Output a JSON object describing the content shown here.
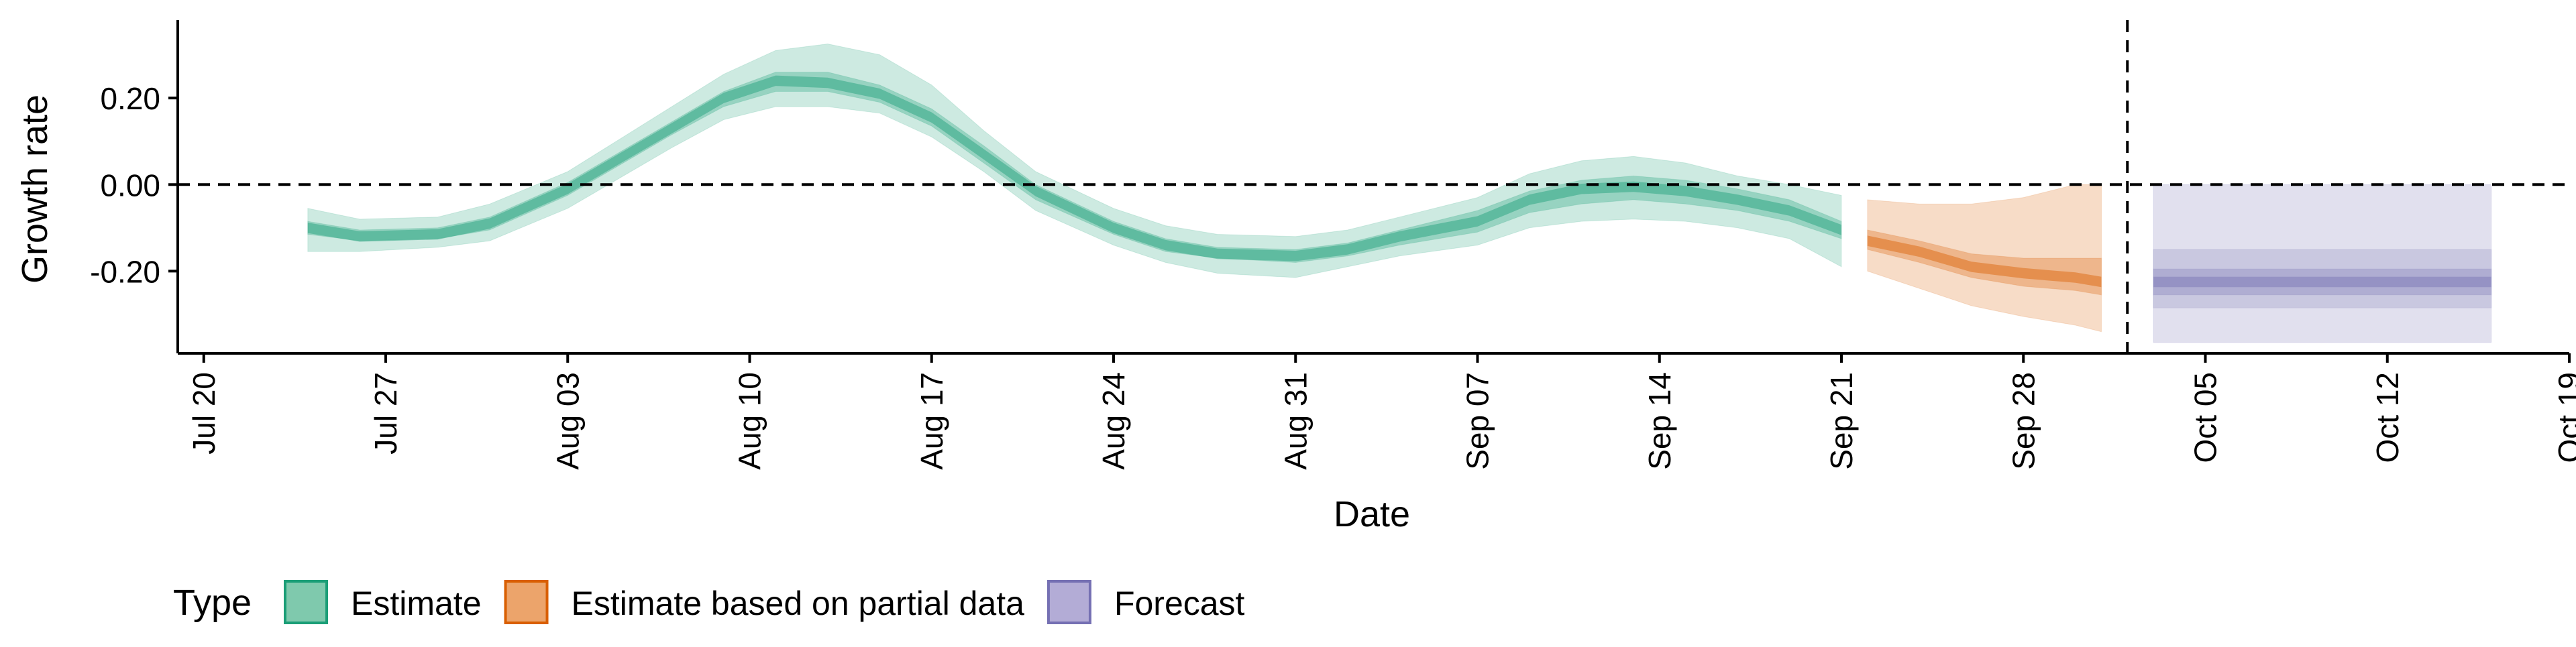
{
  "chart_data": {
    "type": "area",
    "title": "",
    "xlabel": "Date",
    "ylabel": "Growth rate",
    "x_type": "date",
    "xlim": [
      "2020-07-19",
      "2020-10-19"
    ],
    "ylim": [
      -0.39,
      0.38
    ],
    "x_ticks": [
      {
        "date": "2020-07-20",
        "label": "Jul 20"
      },
      {
        "date": "2020-07-27",
        "label": "Jul 27"
      },
      {
        "date": "2020-08-03",
        "label": "Aug 03"
      },
      {
        "date": "2020-08-10",
        "label": "Aug 10"
      },
      {
        "date": "2020-08-17",
        "label": "Aug 17"
      },
      {
        "date": "2020-08-24",
        "label": "Aug 24"
      },
      {
        "date": "2020-08-31",
        "label": "Aug 31"
      },
      {
        "date": "2020-09-07",
        "label": "Sep 07"
      },
      {
        "date": "2020-09-14",
        "label": "Sep 14"
      },
      {
        "date": "2020-09-21",
        "label": "Sep 21"
      },
      {
        "date": "2020-09-28",
        "label": "Sep 28"
      },
      {
        "date": "2020-10-05",
        "label": "Oct 05"
      },
      {
        "date": "2020-10-12",
        "label": "Oct 12"
      },
      {
        "date": "2020-10-19",
        "label": "Oct 19"
      }
    ],
    "y_ticks": [
      {
        "value": 0.2,
        "label": "0.20"
      },
      {
        "value": 0.0,
        "label": "0.00"
      },
      {
        "value": -0.2,
        "label": "-0.20"
      }
    ],
    "hline": 0.0,
    "vline": "2020-10-02",
    "legend": {
      "title": "Type",
      "position": "bottom",
      "entries": [
        {
          "label": "Estimate",
          "fill": "#7fc9ad",
          "stroke": "#1b9e77"
        },
        {
          "label": "Estimate based on partial data",
          "fill": "#eca46b",
          "stroke": "#d95f02"
        },
        {
          "label": "Forecast",
          "fill": "#b3acd6",
          "stroke": "#7570b3"
        }
      ]
    },
    "series": [
      {
        "name": "Estimate",
        "color": "#1b9e77",
        "x": [
          "2020-07-24",
          "2020-07-26",
          "2020-07-29",
          "2020-07-31",
          "2020-08-03",
          "2020-08-05",
          "2020-08-07",
          "2020-08-09",
          "2020-08-11",
          "2020-08-13",
          "2020-08-15",
          "2020-08-17",
          "2020-08-19",
          "2020-08-21",
          "2020-08-24",
          "2020-08-26",
          "2020-08-28",
          "2020-08-31",
          "2020-09-02",
          "2020-09-04",
          "2020-09-07",
          "2020-09-09",
          "2020-09-11",
          "2020-09-13",
          "2020-09-15",
          "2020-09-17",
          "2020-09-19",
          "2020-09-21"
        ],
        "median": [
          -0.1,
          -0.12,
          -0.115,
          -0.09,
          -0.01,
          0.06,
          0.13,
          0.2,
          0.24,
          0.235,
          0.21,
          0.155,
          0.07,
          -0.015,
          -0.1,
          -0.14,
          -0.16,
          -0.165,
          -0.15,
          -0.12,
          -0.085,
          -0.035,
          -0.01,
          -0.005,
          -0.015,
          -0.035,
          -0.06,
          -0.105
        ],
        "lower_50": [
          -0.115,
          -0.13,
          -0.125,
          -0.105,
          -0.025,
          0.045,
          0.115,
          0.18,
          0.215,
          0.215,
          0.19,
          0.135,
          0.05,
          -0.035,
          -0.115,
          -0.155,
          -0.17,
          -0.18,
          -0.165,
          -0.14,
          -0.11,
          -0.065,
          -0.045,
          -0.035,
          -0.045,
          -0.06,
          -0.085,
          -0.125
        ],
        "upper_50": [
          -0.085,
          -0.105,
          -0.1,
          -0.075,
          0.005,
          0.075,
          0.145,
          0.215,
          0.26,
          0.26,
          0.23,
          0.175,
          0.09,
          0.0,
          -0.085,
          -0.125,
          -0.145,
          -0.15,
          -0.135,
          -0.105,
          -0.06,
          -0.015,
          0.01,
          0.02,
          0.01,
          -0.01,
          -0.035,
          -0.085
        ],
        "lower_90": [
          -0.155,
          -0.155,
          -0.145,
          -0.13,
          -0.055,
          0.015,
          0.085,
          0.15,
          0.18,
          0.18,
          0.165,
          0.11,
          0.03,
          -0.06,
          -0.14,
          -0.18,
          -0.205,
          -0.215,
          -0.19,
          -0.165,
          -0.14,
          -0.1,
          -0.085,
          -0.08,
          -0.085,
          -0.1,
          -0.125,
          -0.19
        ],
        "upper_90": [
          -0.055,
          -0.08,
          -0.075,
          -0.045,
          0.03,
          0.105,
          0.18,
          0.255,
          0.31,
          0.325,
          0.3,
          0.23,
          0.125,
          0.03,
          -0.055,
          -0.095,
          -0.115,
          -0.12,
          -0.105,
          -0.075,
          -0.03,
          0.025,
          0.055,
          0.065,
          0.05,
          0.02,
          0.0,
          -0.025
        ]
      },
      {
        "name": "Estimate based on partial data",
        "color": "#d95f02",
        "x": [
          "2020-09-22",
          "2020-09-24",
          "2020-09-26",
          "2020-09-28",
          "2020-09-30",
          "2020-10-01"
        ],
        "median": [
          -0.13,
          -0.155,
          -0.19,
          -0.205,
          -0.215,
          -0.225
        ],
        "lower_50": [
          -0.15,
          -0.18,
          -0.215,
          -0.235,
          -0.245,
          -0.255
        ],
        "upper_50": [
          -0.105,
          -0.13,
          -0.16,
          -0.17,
          -0.17,
          -0.17
        ],
        "lower_90": [
          -0.2,
          -0.24,
          -0.28,
          -0.305,
          -0.325,
          -0.34
        ],
        "upper_90": [
          -0.035,
          -0.045,
          -0.045,
          -0.03,
          0.0,
          0.0
        ]
      },
      {
        "name": "Forecast",
        "color": "#7570b3",
        "x": [
          "2020-10-03",
          "2020-10-16"
        ],
        "median": [
          -0.225,
          -0.225
        ],
        "lower_50": [
          -0.255,
          -0.255
        ],
        "upper_50": [
          -0.195,
          -0.195
        ],
        "lower_75": [
          -0.285,
          -0.285
        ],
        "upper_75": [
          -0.15,
          -0.15
        ],
        "lower_90": [
          -0.365,
          -0.365
        ],
        "upper_90": [
          0.0,
          0.0
        ]
      }
    ]
  }
}
